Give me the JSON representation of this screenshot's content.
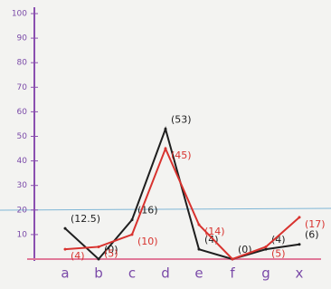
{
  "chart_data": {
    "type": "line",
    "categories": [
      "a",
      "b",
      "c",
      "d",
      "e",
      "f",
      "g",
      "x"
    ],
    "series": [
      {
        "color": "#1e1e1e",
        "values": [
          12.5,
          0,
          16,
          53,
          4,
          0,
          4,
          6
        ],
        "value_labels": [
          "(12.5)",
          "(0)",
          "(16)",
          "(53)",
          "(4)",
          "(0)",
          "(4)",
          "(6)"
        ]
      },
      {
        "color": "#d8322e",
        "values": [
          4,
          5,
          10,
          45,
          14,
          0,
          5,
          17
        ],
        "value_labels": [
          "(4)",
          "(5)",
          "(10)",
          "(45)",
          "(14)",
          null,
          "(5)",
          "(17)"
        ]
      }
    ],
    "ylim": [
      0,
      100
    ],
    "yticks": [
      10,
      20,
      30,
      40,
      50,
      60,
      70,
      80,
      90,
      100
    ]
  }
}
